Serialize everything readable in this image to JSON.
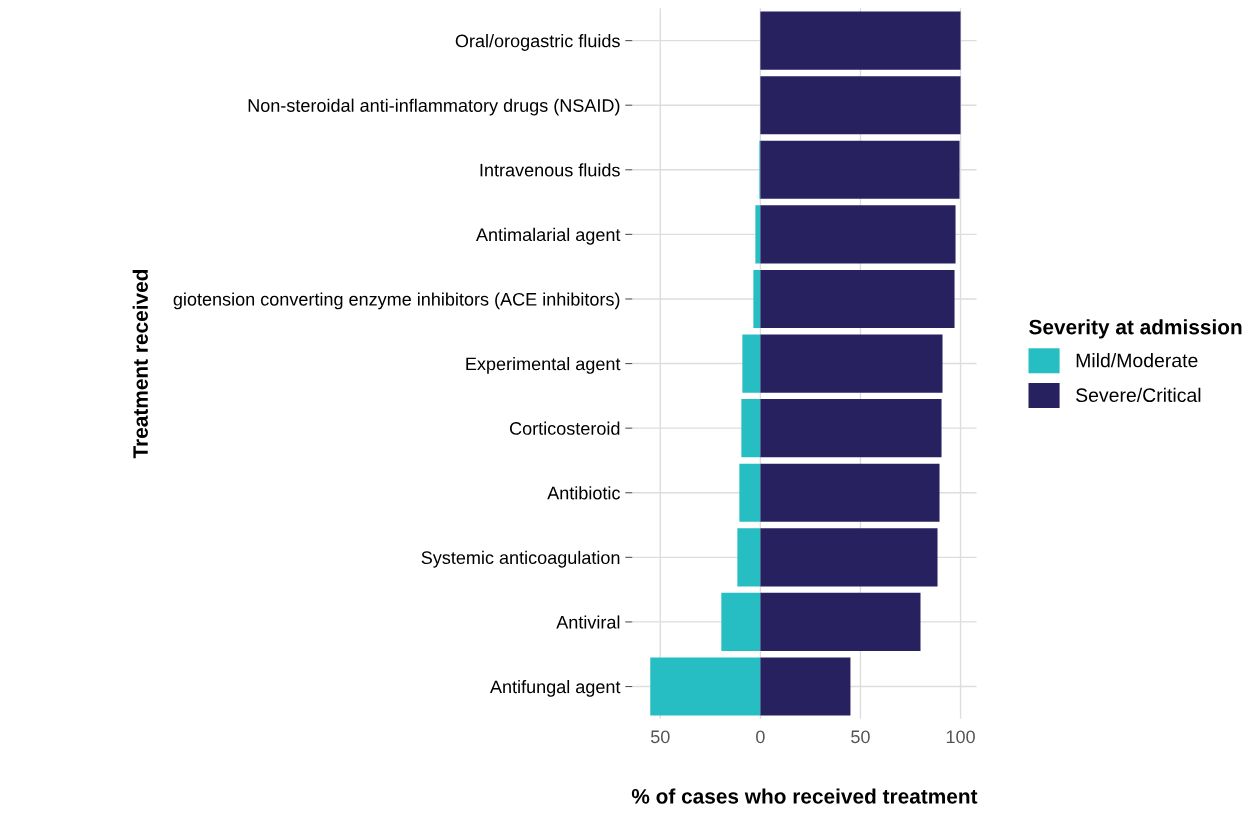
{
  "chart_data": {
    "type": "bar",
    "orientation": "horizontal",
    "xlabel": "% of cases who received treatment",
    "ylabel": "Treatment received",
    "legend_title": "Severity at admission",
    "categories": [
      "Oral/orogastric fluids",
      "Non-steroidal anti-inflammatory drugs (NSAID)",
      "Intravenous fluids",
      "Antimalarial agent",
      "giotension converting enzyme inhibitors (ACE inhibitors)",
      "Experimental agent",
      "Corticosteroid",
      "Antibiotic",
      "Systemic anticoagulation",
      "Antiviral",
      "Antifungal agent"
    ],
    "series": [
      {
        "name": "Mild/Moderate",
        "color": "#26bec2",
        "values": [
          0,
          0,
          -0.5,
          -2.5,
          -3.5,
          -9,
          -9.5,
          -10.5,
          -11.5,
          -19.5,
          -55
        ]
      },
      {
        "name": "Severe/Critical",
        "color": "#27215f",
        "values": [
          100,
          100,
          99.5,
          97.5,
          97,
          91,
          90.5,
          89.5,
          88.5,
          80,
          45
        ]
      }
    ],
    "xlim": [
      -64,
      108
    ],
    "xticks": [
      {
        "value": -50,
        "label": "50"
      },
      0,
      50,
      100
    ],
    "grid": true,
    "legend": "right",
    "stacked": true
  }
}
